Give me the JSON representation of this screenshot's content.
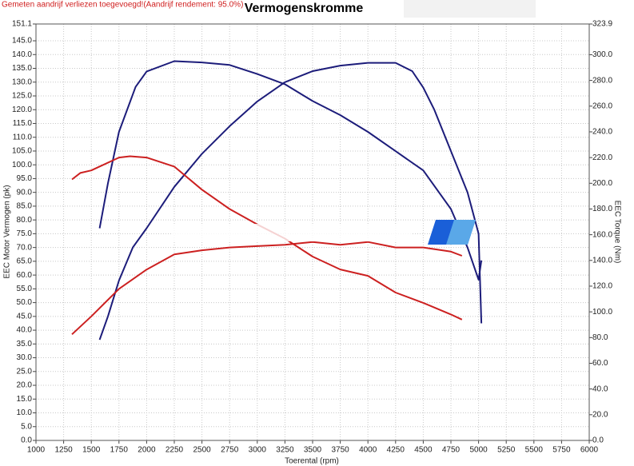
{
  "chart_data": {
    "type": "line",
    "title": "Vermogenskromme",
    "subtitle": "Gemeten aandrijf verliezen toegevoegd!(Aandrijf rendement: 95.0%)",
    "x_label": "Toerental (rpm)",
    "y_label": "EEC Motor Vermogen (pk)",
    "y2_label": "EEC Torque (Nm)",
    "grid": true,
    "xlim": [
      1000,
      6000
    ],
    "xticks": [
      1000,
      1250,
      1500,
      1750,
      2000,
      2250,
      2500,
      2750,
      3000,
      3250,
      3500,
      3750,
      4000,
      4250,
      4500,
      4750,
      5000,
      5250,
      5500,
      5750,
      6000
    ],
    "ylim": [
      0,
      151.1
    ],
    "yticks": [
      {
        "value": 0,
        "label": "0.0"
      },
      {
        "value": 5,
        "label": "5.0"
      },
      {
        "value": 10,
        "label": "10.0"
      },
      {
        "value": 15,
        "label": "15.0"
      },
      {
        "value": 20,
        "label": "20.0"
      },
      {
        "value": 25,
        "label": "25.0"
      },
      {
        "value": 30,
        "label": "30.0"
      },
      {
        "value": 35,
        "label": "35.0"
      },
      {
        "value": 40,
        "label": "40.0"
      },
      {
        "value": 45,
        "label": "45.0"
      },
      {
        "value": 50,
        "label": "50.0"
      },
      {
        "value": 55,
        "label": "55.0"
      },
      {
        "value": 60,
        "label": "60.0"
      },
      {
        "value": 65,
        "label": "65.0"
      },
      {
        "value": 70,
        "label": "70.0"
      },
      {
        "value": 75,
        "label": "75.0"
      },
      {
        "value": 80,
        "label": "80.0"
      },
      {
        "value": 85,
        "label": "85.0"
      },
      {
        "value": 90,
        "label": "90.0"
      },
      {
        "value": 95,
        "label": "95.0"
      },
      {
        "value": 100,
        "label": "100.0"
      },
      {
        "value": 105,
        "label": "105.0"
      },
      {
        "value": 110,
        "label": "110.0"
      },
      {
        "value": 115,
        "label": "115.0"
      },
      {
        "value": 120,
        "label": "120.0"
      },
      {
        "value": 125,
        "label": "125.0"
      },
      {
        "value": 130,
        "label": "130.0"
      },
      {
        "value": 135,
        "label": "135.0"
      },
      {
        "value": 140,
        "label": "140.0"
      },
      {
        "value": 145,
        "label": "145.0"
      },
      151.1
    ],
    "y2lim": [
      0,
      323.9
    ],
    "y2ticks": [
      {
        "value": 0,
        "label": "0.0"
      },
      {
        "value": 20,
        "label": "20.0"
      },
      {
        "value": 40,
        "label": "40.0"
      },
      {
        "value": 60,
        "label": "60.0"
      },
      {
        "value": 80,
        "label": "80.0"
      },
      {
        "value": 100,
        "label": "100.0"
      },
      {
        "value": 120,
        "label": "120.0"
      },
      {
        "value": 140,
        "label": "140.0"
      },
      {
        "value": 160,
        "label": "160.0"
      },
      {
        "value": 180,
        "label": "180.0"
      },
      {
        "value": 200,
        "label": "200.0"
      },
      {
        "value": 220,
        "label": "220.0"
      },
      {
        "value": 240,
        "label": "240.0"
      },
      {
        "value": 260,
        "label": "260.0"
      },
      {
        "value": 280,
        "label": "280.0"
      },
      {
        "value": 300,
        "label": "300.0"
      },
      323.9
    ],
    "series": [
      {
        "color": "#1c1c7a",
        "x": [
          1575,
          1650,
          1750,
          1875,
          2000,
          2250,
          2500,
          2750,
          3000,
          3250,
          3500,
          3750,
          4000,
          4250,
          4400,
          4500,
          4600,
          4750,
          4900,
          5000,
          5025
        ],
        "values": [
          36.5,
          45,
          58,
          70,
          77,
          92,
          104,
          114,
          123,
          130,
          134,
          136,
          137,
          137,
          134,
          128,
          120,
          105,
          90,
          75,
          42.5
        ]
      },
      {
        "color": "#1c1c7a",
        "axis": "y2",
        "x": [
          1575,
          1650,
          1750,
          1900,
          2000,
          2250,
          2500,
          2750,
          3000,
          3250,
          3500,
          3750,
          4000,
          4250,
          4500,
          4750,
          4900,
          5000,
          5025
        ],
        "values": [
          165,
          200,
          240,
          275,
          287,
          295,
          294,
          292,
          285,
          277,
          264,
          253,
          240,
          225,
          210,
          180,
          150,
          125,
          140
        ]
      },
      {
        "color": "#cc2020",
        "x": [
          1325,
          1500,
          1750,
          2000,
          2250,
          2500,
          2750,
          3000,
          3250,
          3500,
          3750,
          4000,
          4250,
          4500,
          4750,
          4850
        ],
        "values": [
          38.5,
          45,
          55,
          62,
          67.5,
          69,
          70,
          70.5,
          71,
          72,
          71,
          72,
          70,
          70,
          68.5,
          67
        ]
      },
      {
        "color": "#cc2020",
        "axis": "y2",
        "x": [
          1325,
          1400,
          1500,
          1750,
          1850,
          2000,
          2250,
          2500,
          2750,
          3000,
          3250,
          3500,
          3750,
          4000,
          4250,
          4500,
          4750,
          4850
        ],
        "values": [
          203,
          208,
          210,
          220,
          221,
          220,
          213,
          195,
          180,
          168,
          157,
          143,
          133,
          128,
          115,
          107,
          98,
          94
        ]
      }
    ]
  }
}
